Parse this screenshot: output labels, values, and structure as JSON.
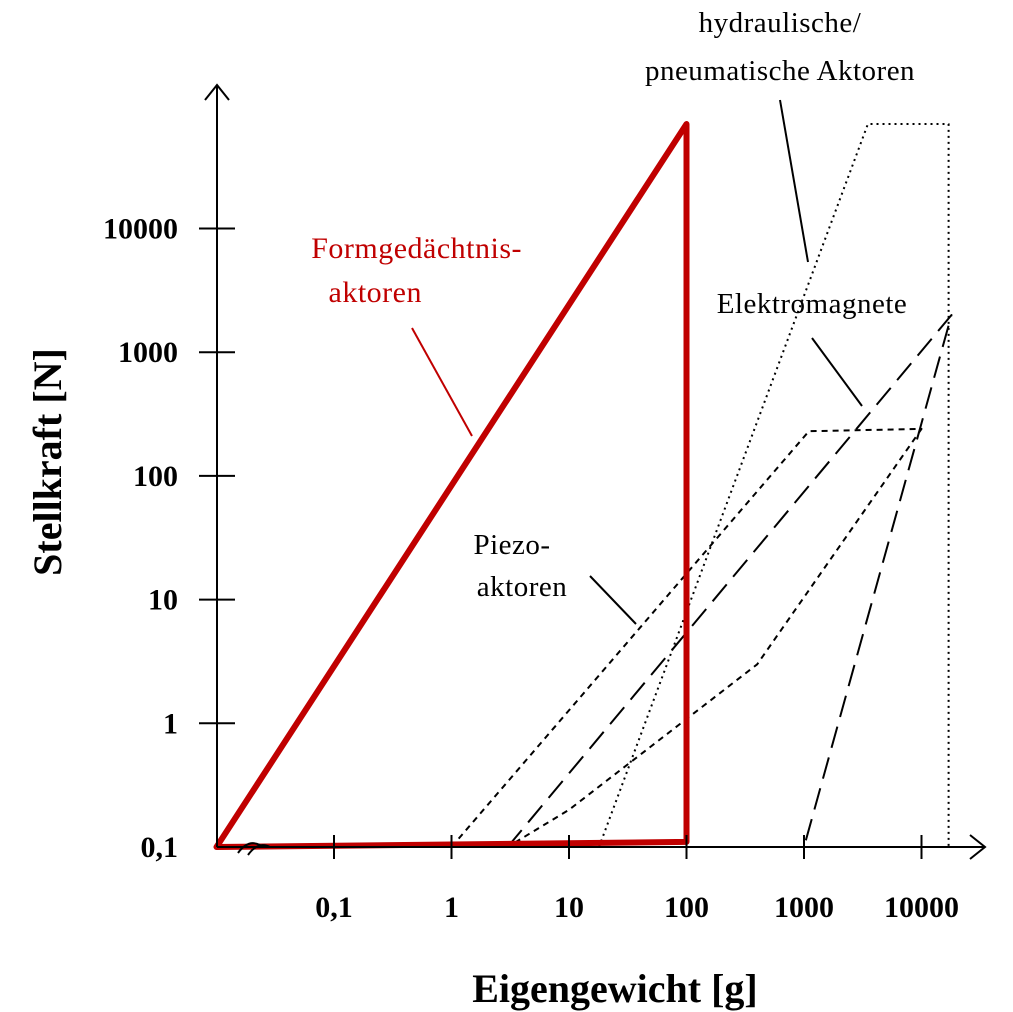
{
  "chart_data": {
    "type": "area",
    "xlabel": "Eigengewicht [g]",
    "ylabel": "Stellkraft [N]",
    "x_scale": "log",
    "y_scale": "log",
    "x_ticks": [
      {
        "value": 0.1,
        "label": "0,1"
      },
      {
        "value": 1,
        "label": "1"
      },
      {
        "value": 10,
        "label": "10"
      },
      {
        "value": 100,
        "label": "100"
      },
      {
        "value": 1000,
        "label": "1000"
      },
      {
        "value": 10000,
        "label": "10000"
      }
    ],
    "y_ticks": [
      {
        "value": 0.1,
        "label": "0,1"
      },
      {
        "value": 1,
        "label": "1"
      },
      {
        "value": 10,
        "label": "10"
      },
      {
        "value": 100,
        "label": "100"
      },
      {
        "value": 1000,
        "label": "1000"
      },
      {
        "value": 10000,
        "label": "10000"
      }
    ],
    "xlim": [
      0.01,
      80000
    ],
    "ylim": [
      0.1,
      200000
    ],
    "grid": false,
    "accent_color": "#c00000",
    "series": [
      {
        "label": "Formgedächtnis-\naktoren",
        "style": "solid",
        "color": "#c00000",
        "points": [
          [
            0.01,
            0.1
          ],
          [
            100,
            70000
          ],
          [
            100,
            0.11
          ],
          [
            0.01,
            0.1
          ]
        ]
      },
      {
        "label": "hydraulische/\npneumatische Aktoren",
        "style": "dotted",
        "color": "#000000",
        "points": [
          [
            18,
            0.1
          ],
          [
            3500,
            70000
          ],
          [
            17000,
            70000
          ],
          [
            17000,
            0.1
          ],
          [
            18,
            0.1
          ]
        ]
      },
      {
        "label": "Elektromagnete",
        "style": "long-dash",
        "color": "#000000",
        "points": [
          [
            3,
            0.1
          ],
          [
            18000,
            2000
          ],
          [
            1000,
            0.1
          ],
          [
            3,
            0.1
          ]
        ]
      },
      {
        "label": "Piezo-\naktoren",
        "style": "short-dash",
        "color": "#000000",
        "points": [
          [
            1,
            0.1
          ],
          [
            1100,
            230
          ],
          [
            10000,
            240
          ],
          [
            400,
            3
          ],
          [
            10,
            0.2
          ],
          [
            3,
            0.1
          ],
          [
            1,
            0.1
          ]
        ]
      }
    ]
  }
}
